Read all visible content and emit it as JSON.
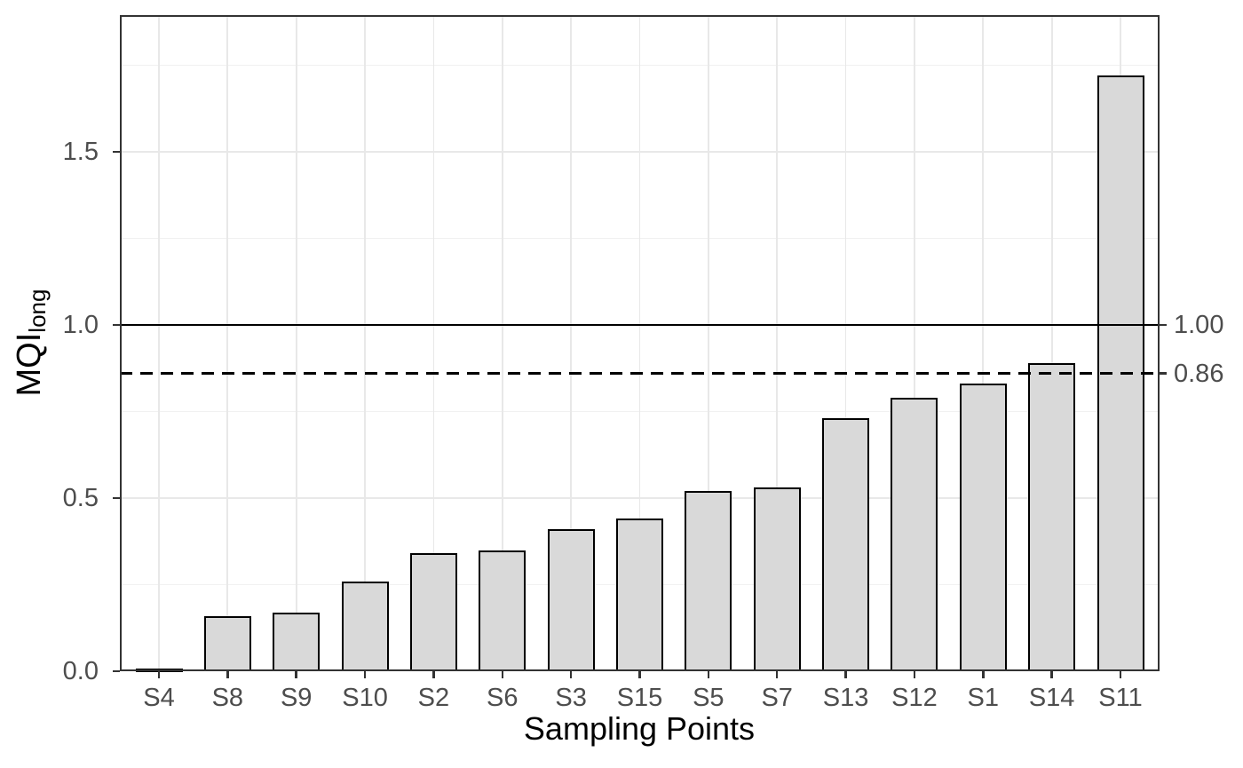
{
  "chart_data": {
    "type": "bar",
    "title": "",
    "xlabel": "Sampling Points",
    "ylabel_main": "MQI",
    "ylabel_sub": "long",
    "categories": [
      "S4",
      "S8",
      "S9",
      "S10",
      "S2",
      "S6",
      "S3",
      "S15",
      "S5",
      "S7",
      "S13",
      "S12",
      "S1",
      "S14",
      "S11"
    ],
    "values": [
      0.001,
      0.16,
      0.17,
      0.26,
      0.34,
      0.35,
      0.41,
      0.44,
      0.52,
      0.53,
      0.73,
      0.79,
      0.83,
      0.89,
      1.72
    ],
    "ylim": [
      0,
      1.895
    ],
    "yticks": [
      {
        "value": 0.0,
        "label": "0.0"
      },
      {
        "value": 0.5,
        "label": "0.5"
      },
      {
        "value": 1.0,
        "label": "1.0"
      },
      {
        "value": 1.5,
        "label": "1.5"
      }
    ],
    "major_gridlines": [
      0.5,
      1.0,
      1.5
    ],
    "minor_gridlines": [
      0.25,
      0.75,
      1.25,
      1.75
    ],
    "reference_lines": [
      {
        "value": 1.0,
        "label": "1.00",
        "style": "solid"
      },
      {
        "value": 0.86,
        "label": "0.86",
        "style": "dashed"
      }
    ],
    "legend": "none",
    "grid": "on",
    "colors": {
      "bar_fill": "#d9d9d9",
      "bar_stroke": "#000000",
      "panel_border": "#333333",
      "grid_major": "#e8e8e8",
      "grid_minor": "#f1f1f1",
      "tick_label": "#4d4d4d",
      "axis_title": "#000000",
      "reference_line": "#000000"
    }
  }
}
